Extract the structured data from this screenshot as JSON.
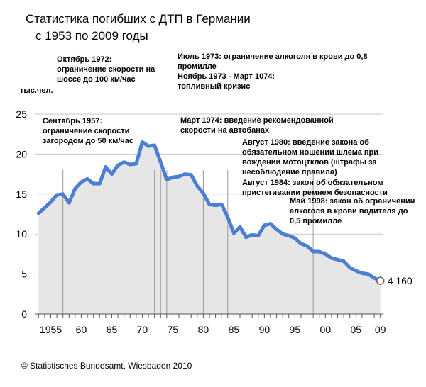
{
  "title_line1": "Статистика погибших с ДТП в Германии",
  "title_line2": "с 1953 по 2009 годы",
  "source": "© Statistisches Bundesamt, Wiesbaden 2010",
  "colors": {
    "line": "#4a7fd4",
    "area": "#e6e6e6",
    "grid": "#c8c8c8",
    "axis": "#555555"
  },
  "chart_data": {
    "type": "area",
    "ylabel": "тыс.чел.",
    "ylim": [
      0,
      25
    ],
    "xlim": [
      1952.5,
      2009.5
    ],
    "y_ticks": [
      "0",
      "5",
      "10",
      "15",
      "20",
      "25"
    ],
    "x_tick_labels": [
      {
        "year": 1955,
        "label": "1955"
      },
      {
        "year": 1960,
        "label": "60"
      },
      {
        "year": 1965,
        "label": "65"
      },
      {
        "year": 1970,
        "label": "70"
      },
      {
        "year": 1975,
        "label": "75"
      },
      {
        "year": 1980,
        "label": "80"
      },
      {
        "year": 1985,
        "label": "85"
      },
      {
        "year": 1990,
        "label": "90"
      },
      {
        "year": 1995,
        "label": "95"
      },
      {
        "year": 2000,
        "label": "00"
      },
      {
        "year": 2005,
        "label": "05"
      },
      {
        "year": 2009,
        "label": "09"
      }
    ],
    "x": [
      1953,
      1954,
      1955,
      1956,
      1957,
      1958,
      1959,
      1960,
      1961,
      1962,
      1963,
      1964,
      1965,
      1966,
      1967,
      1968,
      1969,
      1970,
      1971,
      1972,
      1973,
      1974,
      1975,
      1976,
      1977,
      1978,
      1979,
      1980,
      1981,
      1982,
      1983,
      1984,
      1985,
      1986,
      1987,
      1988,
      1989,
      1990,
      1991,
      1992,
      1993,
      1994,
      1995,
      1996,
      1997,
      1998,
      1999,
      2000,
      2001,
      2002,
      2003,
      2004,
      2005,
      2006,
      2007,
      2008,
      2009
    ],
    "values": [
      12.6,
      13.3,
      14.0,
      14.9,
      15.0,
      13.9,
      15.7,
      16.5,
      16.9,
      16.3,
      16.3,
      18.4,
      17.5,
      18.6,
      19.0,
      18.7,
      18.8,
      21.5,
      21.0,
      21.1,
      19.0,
      16.8,
      17.1,
      17.2,
      17.5,
      17.4,
      16.0,
      15.1,
      13.7,
      13.6,
      13.7,
      12.1,
      10.1,
      10.9,
      9.6,
      9.9,
      9.8,
      11.1,
      11.3,
      10.6,
      10.0,
      9.8,
      9.5,
      8.8,
      8.5,
      7.8,
      7.8,
      7.5,
      7.0,
      6.8,
      6.6,
      5.8,
      5.4,
      5.1,
      5.0,
      4.5,
      4.16
    ],
    "end_value_label": "4 160",
    "annotations": [
      {
        "year": 1957,
        "lines": [
          "Сентябрь 1957:",
          "ограничение скорости",
          "загородом до 50 км/час"
        ]
      },
      {
        "year": 1972,
        "lines": [
          "Октябрь 1972:",
          "ограничение скорости на",
          "шоссе до 100 км/час"
        ]
      },
      {
        "year": 1973,
        "lines": [
          "Июль 1973: ограничение алкоголя в крови до 0,8",
          "промилле",
          "Ноябрь 1973 - Март 1074:",
          "топливный кризис"
        ]
      },
      {
        "year": 1974,
        "lines": [
          "Март 1974: введение рекомендованной",
          "скорости на автобанах"
        ]
      },
      {
        "year": 1980,
        "lines": [
          "Август 1980: введение закона об",
          "обязательном ношении шлема при",
          "вождении мотоцтклов (штрафы за",
          "несоблюдение правила)"
        ]
      },
      {
        "year": 1984,
        "lines": [
          "Август 1984: закон об обязательном",
          "пристегивании ремнем безопасности"
        ]
      },
      {
        "year": 1998,
        "lines": [
          "Май 1998: закон об ограничении",
          "алкоголя в крови водителя до",
          "0,5 промилле"
        ]
      }
    ]
  }
}
